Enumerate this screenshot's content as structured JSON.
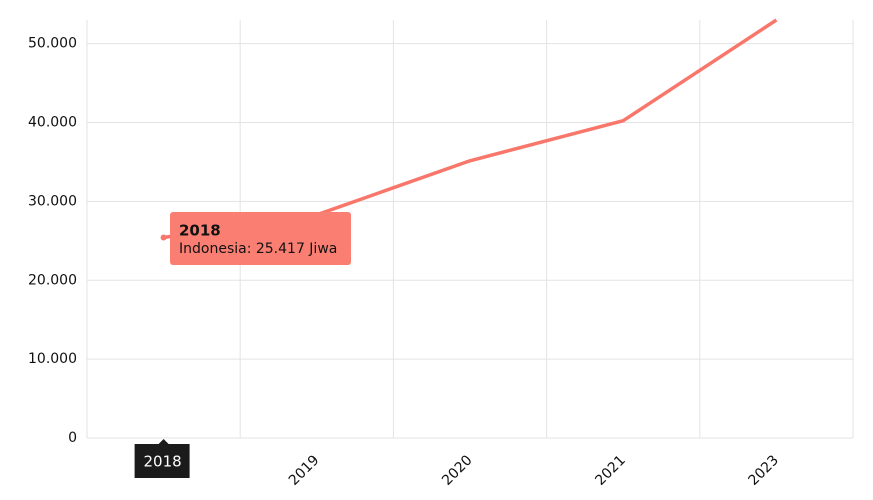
{
  "chart_data": {
    "type": "line",
    "categories": [
      "2018",
      "2019",
      "2020",
      "2021",
      "2023"
    ],
    "series": [
      {
        "name": "Indonesia",
        "color": "#f8766a",
        "values": [
          25417,
          28300,
          35150,
          40230,
          53000
        ]
      }
    ],
    "ylim": [
      0,
      53000
    ],
    "yticks": [
      0,
      {
        "value": 10000,
        "label": "10.000"
      },
      {
        "value": 20000,
        "label": "20.000"
      },
      {
        "value": 30000,
        "label": "30.000"
      },
      {
        "value": 40000,
        "label": "40.000"
      },
      {
        "value": 50000,
        "label": "50.000"
      }
    ],
    "grid": true,
    "tooltip": {
      "title": "2018",
      "text": "Indonesia: 25.417 Jiwa",
      "color": "#fa7f72"
    },
    "crosshair_label_color": "#1b1b1b"
  }
}
